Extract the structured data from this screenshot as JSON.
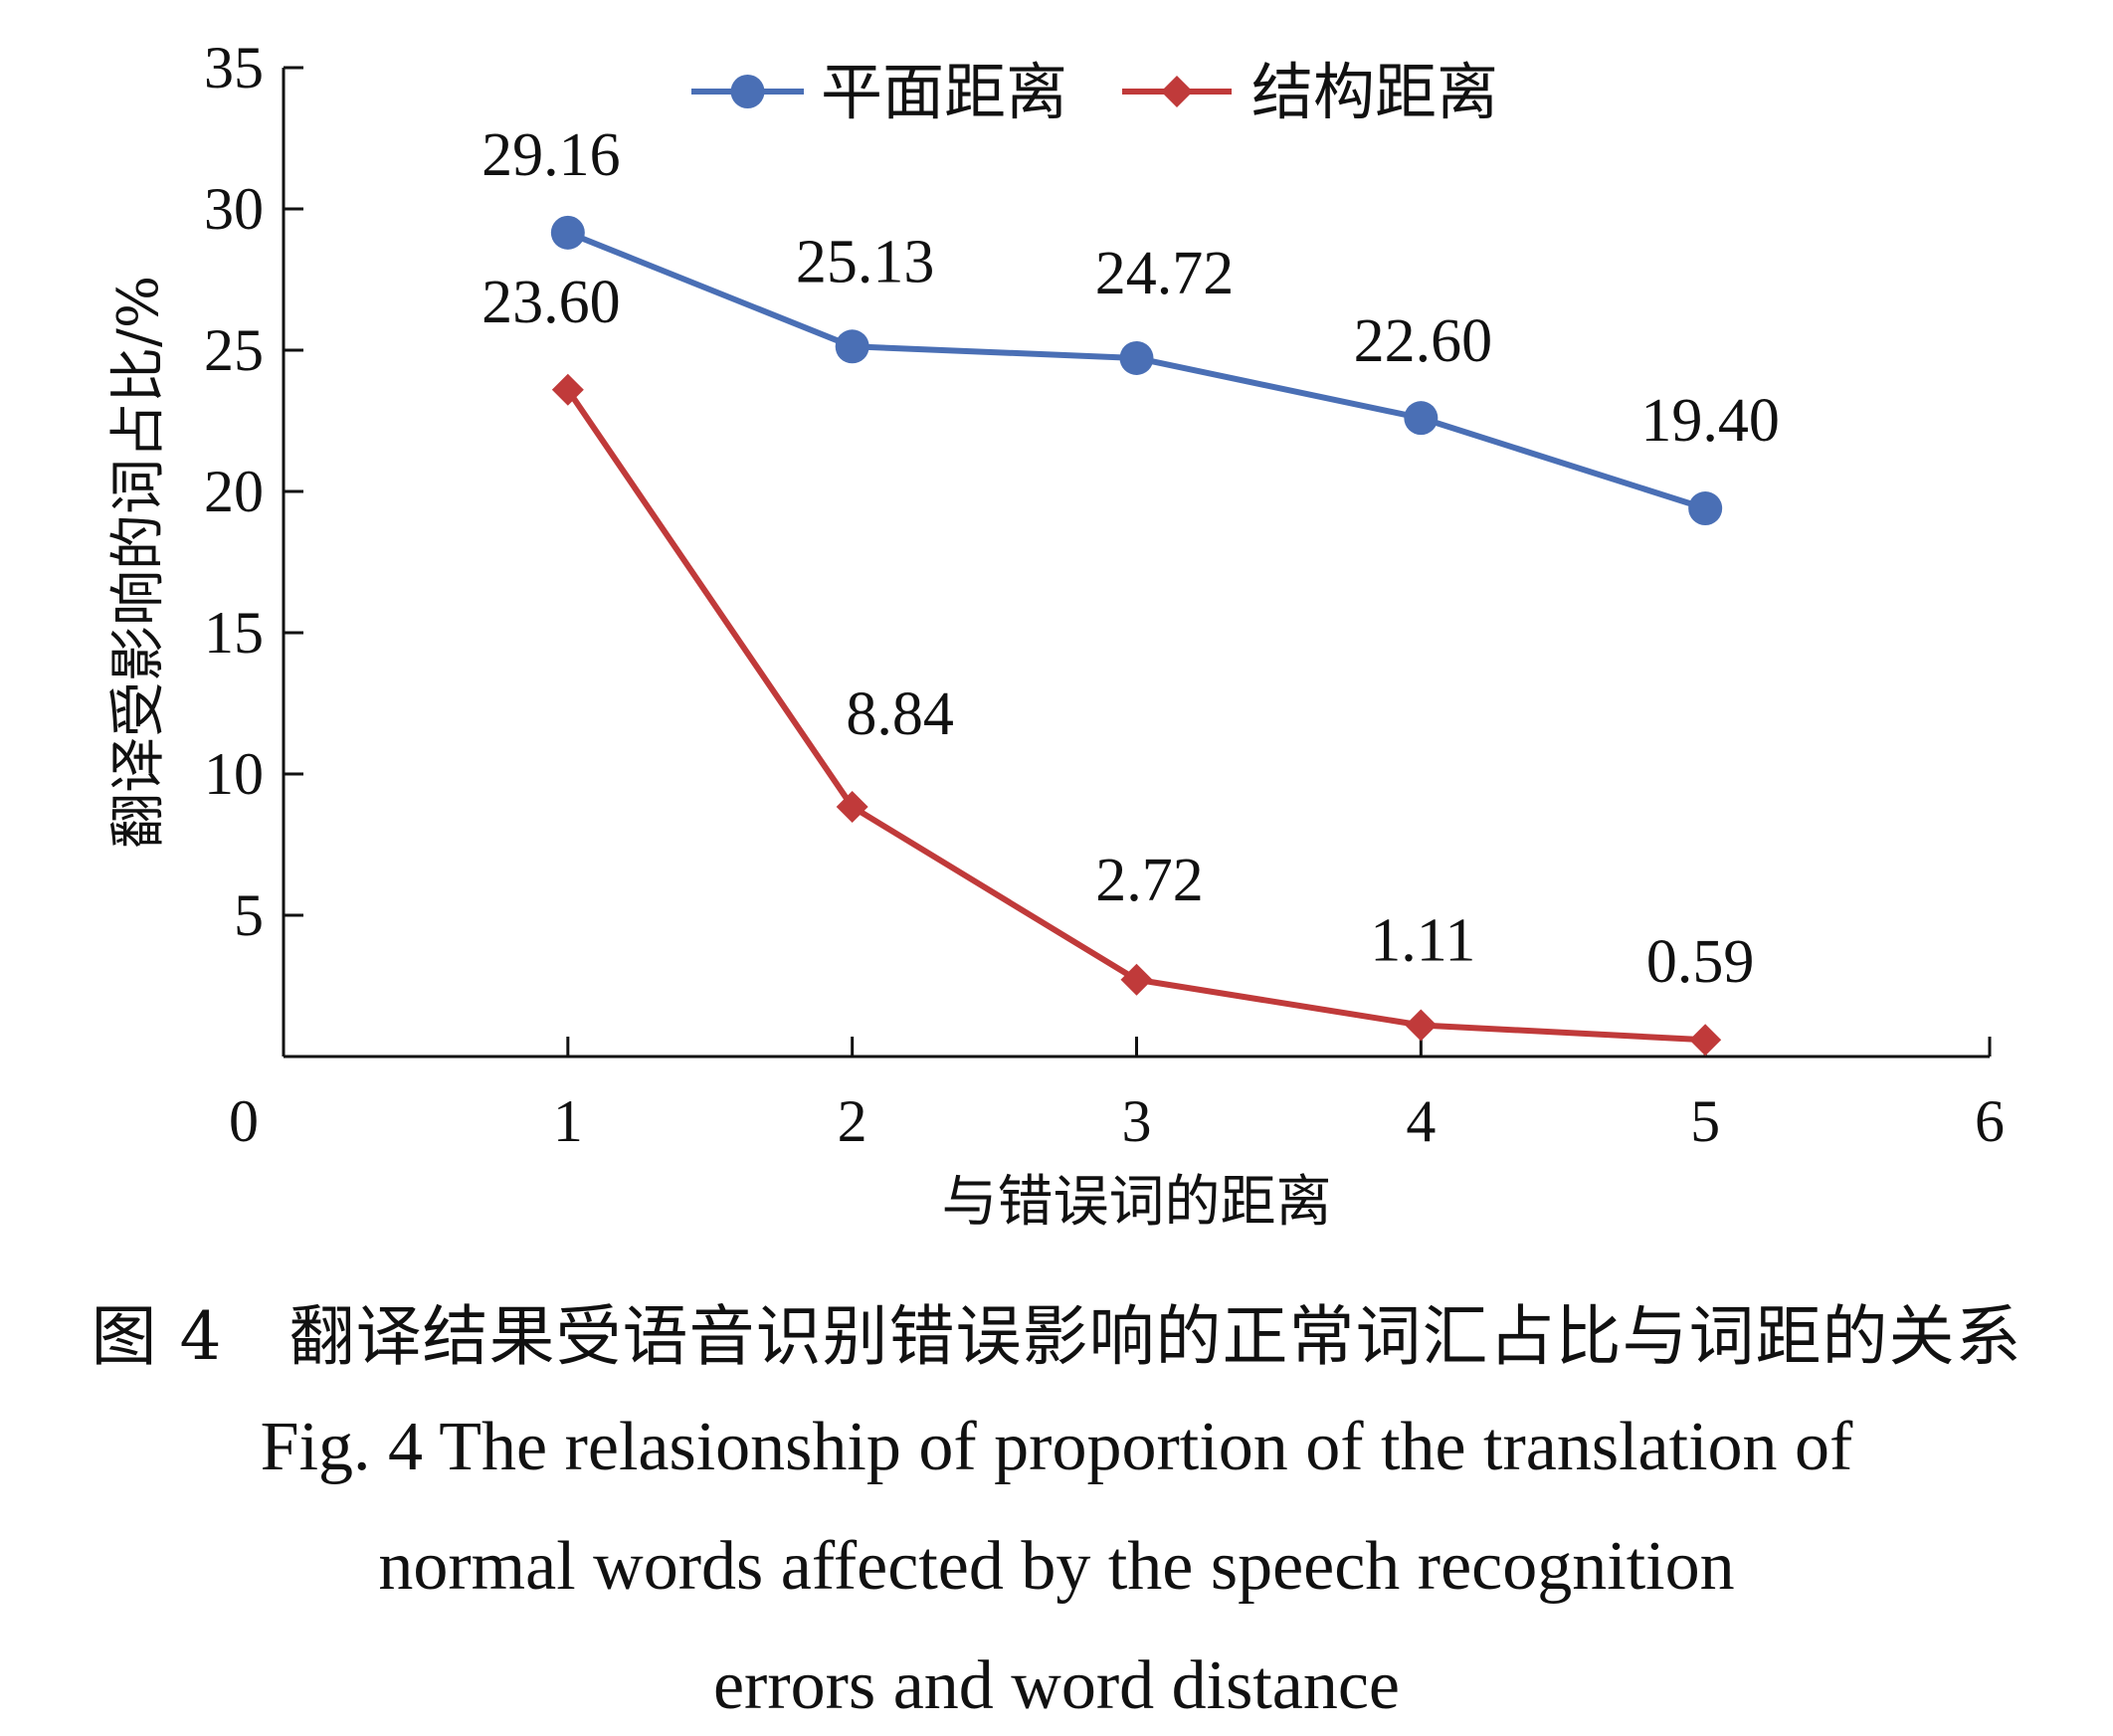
{
  "chart_data": {
    "type": "line",
    "x": [
      1,
      2,
      3,
      4,
      5
    ],
    "xlim": [
      0,
      6
    ],
    "ylim": [
      0,
      35
    ],
    "xticks": [
      "0",
      "1",
      "2",
      "3",
      "4",
      "5",
      "6"
    ],
    "yticks": [
      "5",
      "10",
      "15",
      "20",
      "25",
      "30",
      "35"
    ],
    "xlabel": "与错误词的距离",
    "ylabel": "翻译受影响的词占比/%",
    "legend_position": "top-center",
    "grid": false,
    "series": [
      {
        "name": "平面距离",
        "values": [
          29.16,
          25.13,
          24.72,
          22.6,
          19.4
        ],
        "labels": [
          "29.16",
          "25.13",
          "24.72",
          "22.60",
          "19.40"
        ],
        "color": "#4a6fb5",
        "marker": "circle"
      },
      {
        "name": "结构距离",
        "values": [
          23.6,
          8.84,
          2.72,
          1.11,
          0.59
        ],
        "labels": [
          "23.60",
          "8.84",
          "2.72",
          "1.11",
          "0.59"
        ],
        "color": "#c03a3a",
        "marker": "diamond"
      }
    ]
  },
  "caption": {
    "cn": "图 4　翻译结果受语音识别错误影响的正常词汇占比与词距的关系",
    "en_line1": "Fig. 4   The relasionship of proportion of the translation of",
    "en_line2": "normal words affected by the speech recognition",
    "en_line3": "errors and word distance"
  }
}
